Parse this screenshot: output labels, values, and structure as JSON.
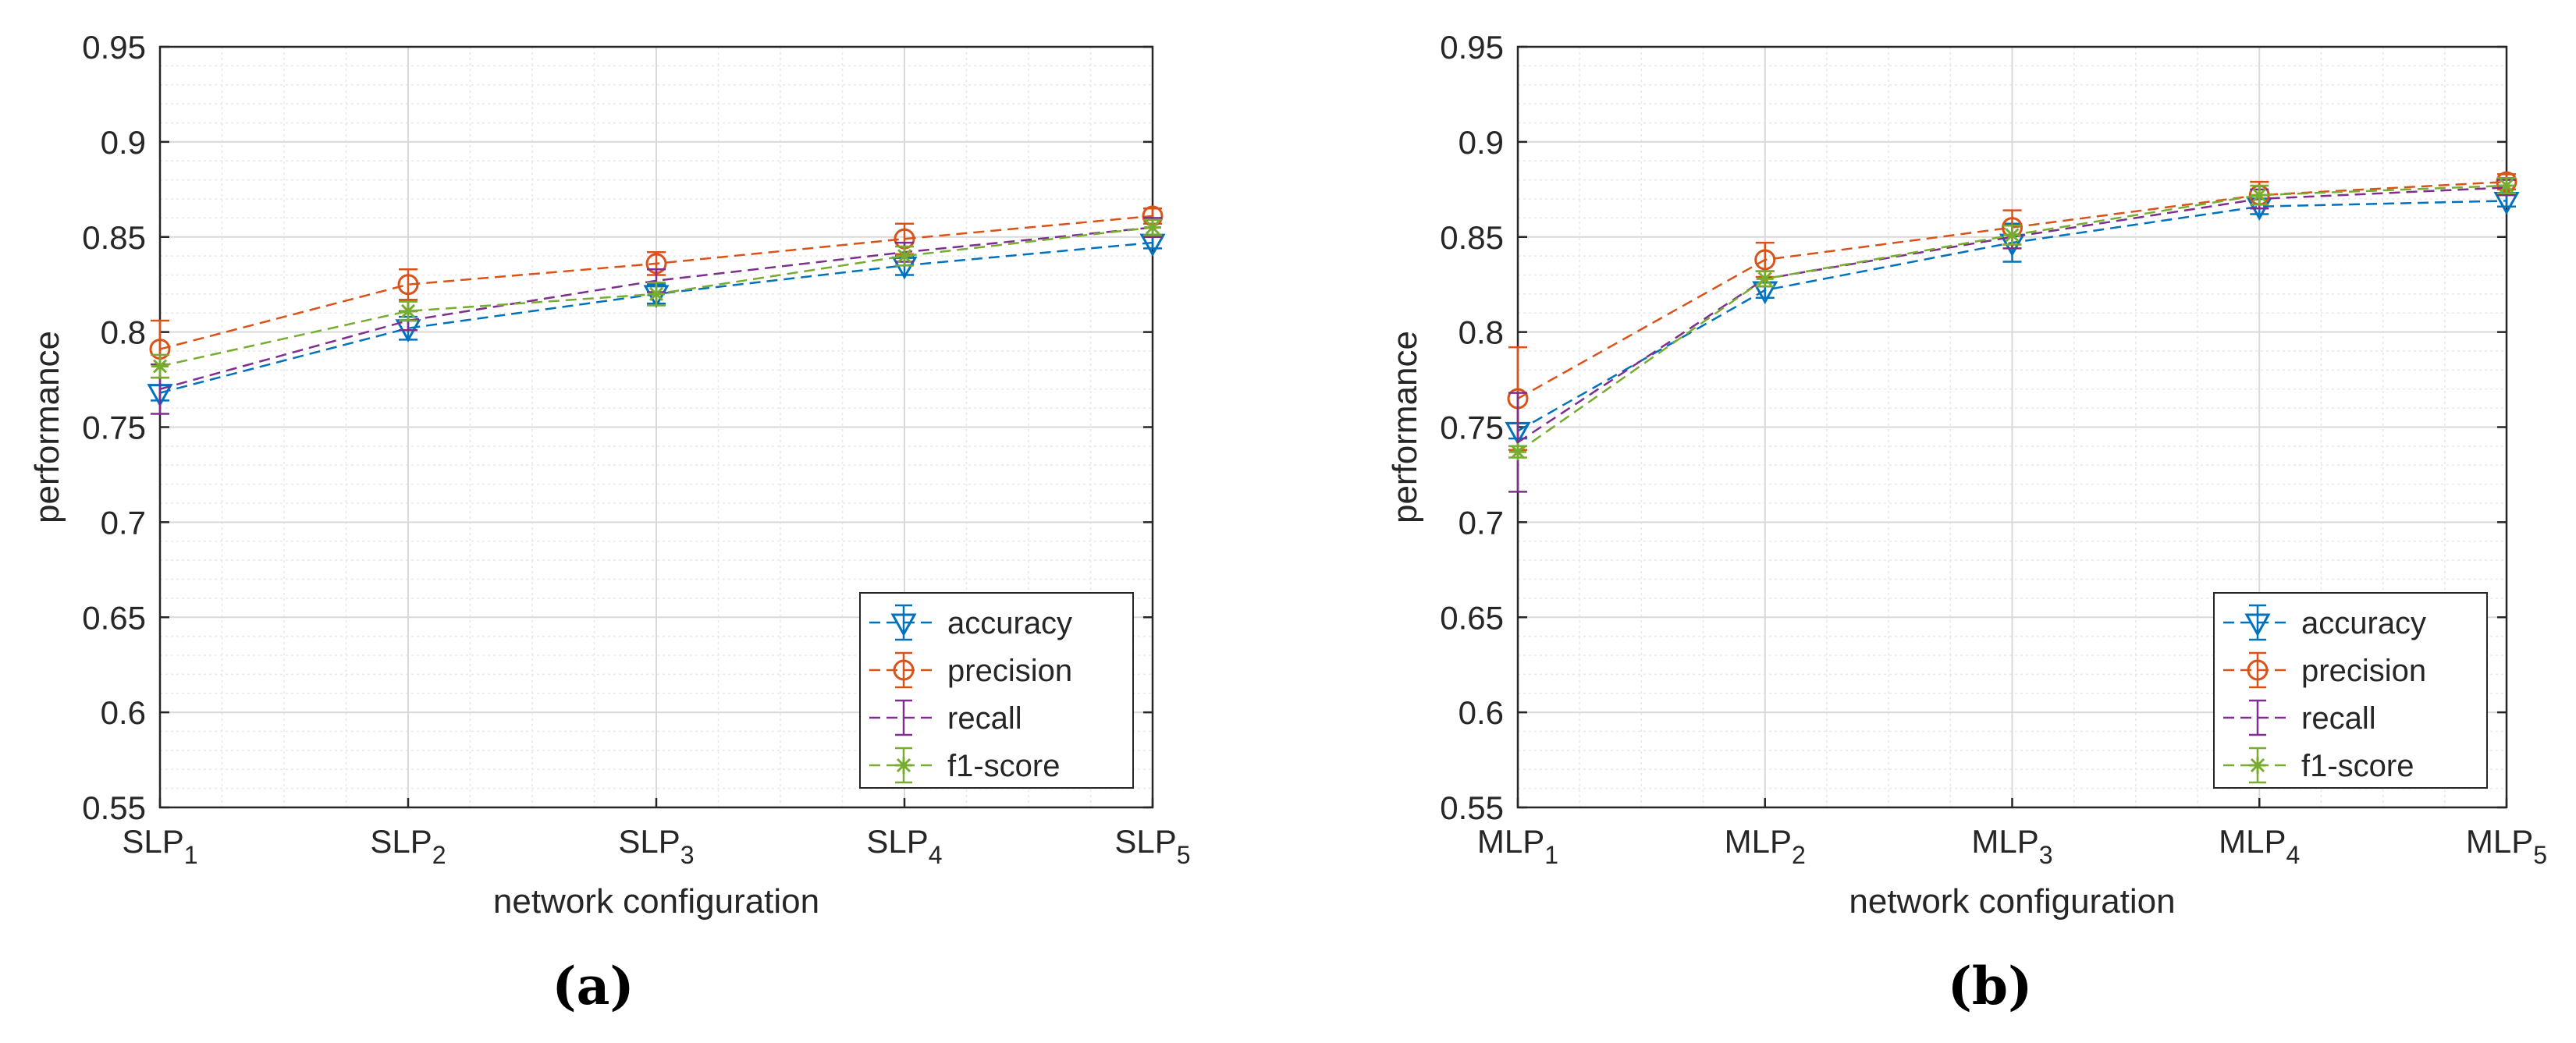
{
  "colors": {
    "accuracy": "#0072BD",
    "precision": "#D95319",
    "recall": "#7E2F8E",
    "f1": "#77AC30",
    "grid": "#d9d9d9",
    "minor_grid": "#e8e8e8",
    "axis": "#262626"
  },
  "chart_data": [
    {
      "type": "line",
      "panel_label": "(a)",
      "xlabel": "network configuration",
      "ylabel": "performance",
      "ylim": [
        0.55,
        0.95
      ],
      "yticks": [
        "0.55",
        "0.6",
        "0.65",
        "0.7",
        "0.75",
        "0.8",
        "0.85",
        "0.9",
        "0.95"
      ],
      "categories": [
        {
          "base": "SLP",
          "sub": "1"
        },
        {
          "base": "SLP",
          "sub": "2"
        },
        {
          "base": "SLP",
          "sub": "3"
        },
        {
          "base": "SLP",
          "sub": "4"
        },
        {
          "base": "SLP",
          "sub": "5"
        }
      ],
      "grid": true,
      "legend_position": "bottom-right",
      "series": [
        {
          "key": "accuracy",
          "name": "accuracy",
          "marker": "triangle-down",
          "values": [
            0.768,
            0.802,
            0.82,
            0.835,
            0.847
          ],
          "errors": [
            0.004,
            0.006,
            0.005,
            0.005,
            0.003
          ]
        },
        {
          "key": "precision",
          "name": "precision",
          "marker": "circle",
          "values": [
            0.791,
            0.825,
            0.836,
            0.849,
            0.861
          ],
          "errors": [
            0.015,
            0.008,
            0.006,
            0.008,
            0.004
          ]
        },
        {
          "key": "recall",
          "name": "recall",
          "marker": "none",
          "values": [
            0.77,
            0.806,
            0.827,
            0.842,
            0.855
          ],
          "errors": [
            0.013,
            0.005,
            0.006,
            0.005,
            0.005
          ]
        },
        {
          "key": "f1",
          "name": "f1-score",
          "marker": "asterisk",
          "values": [
            0.782,
            0.811,
            0.82,
            0.84,
            0.855
          ],
          "errors": [
            0.006,
            0.005,
            0.006,
            0.005,
            0.004
          ]
        }
      ]
    },
    {
      "type": "line",
      "panel_label": "(b)",
      "xlabel": "network configuration",
      "ylabel": "performance",
      "ylim": [
        0.55,
        0.95
      ],
      "yticks": [
        "0.55",
        "0.6",
        "0.65",
        "0.7",
        "0.75",
        "0.8",
        "0.85",
        "0.9",
        "0.95"
      ],
      "categories": [
        {
          "base": "MLP",
          "sub": "1"
        },
        {
          "base": "MLP",
          "sub": "2"
        },
        {
          "base": "MLP",
          "sub": "3"
        },
        {
          "base": "MLP",
          "sub": "4"
        },
        {
          "base": "MLP",
          "sub": "5"
        }
      ],
      "grid": true,
      "legend_position": "bottom-right",
      "series": [
        {
          "key": "accuracy",
          "name": "accuracy",
          "marker": "triangle-down",
          "values": [
            0.748,
            0.822,
            0.847,
            0.866,
            0.869
          ],
          "errors": [
            0.004,
            0.004,
            0.01,
            0.004,
            0.003
          ]
        },
        {
          "key": "precision",
          "name": "precision",
          "marker": "circle",
          "values": [
            0.765,
            0.838,
            0.855,
            0.872,
            0.879
          ],
          "errors": [
            0.027,
            0.009,
            0.009,
            0.007,
            0.004
          ]
        },
        {
          "key": "recall",
          "name": "recall",
          "marker": "none",
          "values": [
            0.742,
            0.828,
            0.85,
            0.87,
            0.876
          ],
          "errors": [
            0.026,
            0.004,
            0.006,
            0.005,
            0.004
          ]
        },
        {
          "key": "f1",
          "name": "f1-score",
          "marker": "asterisk",
          "values": [
            0.737,
            0.828,
            0.851,
            0.872,
            0.877
          ],
          "errors": [
            0.003,
            0.004,
            0.005,
            0.005,
            0.004
          ]
        }
      ]
    }
  ]
}
